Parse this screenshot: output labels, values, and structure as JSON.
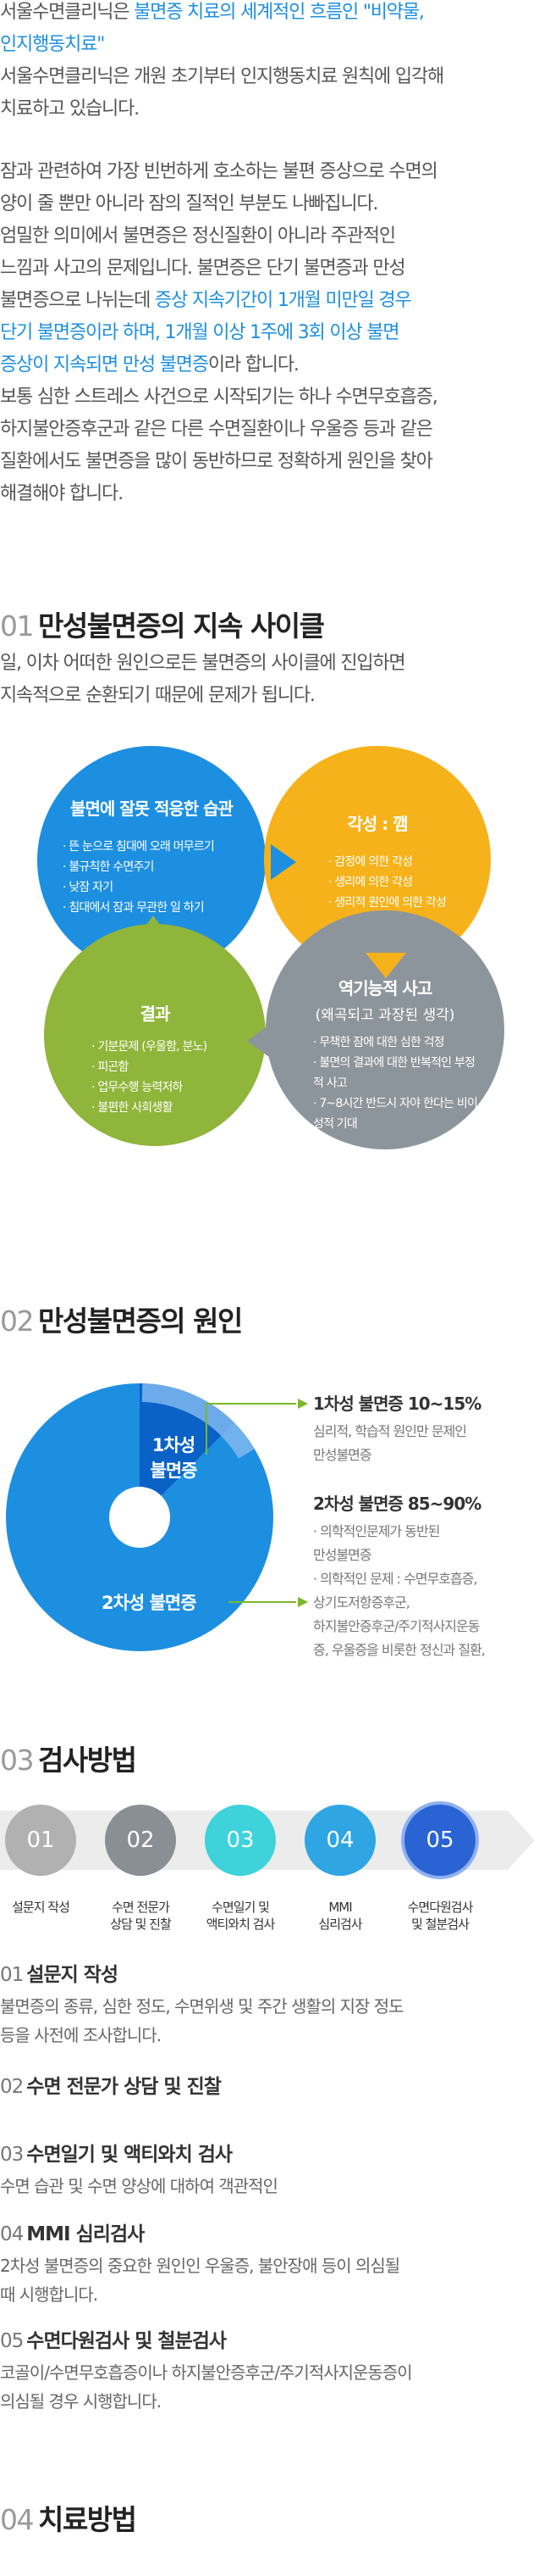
{
  "intro": {
    "line1_pre": "서울수면클리닉은 ",
    "line1_blue": "불면증 치료의 세계적인 흐름인 \"비약물,",
    "line2_blue": "인지행동치료\"",
    "line3": "서울수면클리닉은 개원 초기부터 인지행동치료 원칙에 입각해",
    "line4": "치료하고 있습니다."
  },
  "body": {
    "p1": "잠과 관련하여 가장 빈번하게 호소하는 불편 증상으로 수면의",
    "p2": "양이 줄 뿐만 아니라 잠의 질적인 부분도 나빠집니다.",
    "p3": "엄밀한 의미에서 불면증은 정신질환이 아니라 주관적인",
    "p4": "느낌과 사고의 문제입니다. 불면증은 단기 불면증과 만성",
    "p5_pre": "불면증으로 나뉘는데 ",
    "p5_blue": "증상 지속기간이 1개월 미만일 경우",
    "p6_blue": "단기 불면증이라 하며, 1개월 이상 1주에 3회 이상 불면",
    "p7_blue": "증상이 지속되면 만성 불면증",
    "p7_post": "이라 합니다.",
    "p8": "보통 심한 스트레스 사건으로 시작되기는 하나 수면무호흡증,",
    "p9": "하지불안증후군과 같은 다른 수면질환이나 우울증 등과 같은",
    "p10": "질환에서도 불면증을 많이 동반하므로 정확하게 원인을 찾아",
    "p11": "해결해야 합니다."
  },
  "section1": {
    "num": "01",
    "title": "만성불면증의 지속 사이클",
    "desc1": "일, 이차 어떠한 원인으로든 불면증의 사이클에 진입하면",
    "desc2": "지속적으로 순환되기 때문에 문제가 됩니다.",
    "cycle": {
      "habit": {
        "title": "불면에 잘못 적응한 습관",
        "items": [
          "뜬 눈으로 침대에 오래 머무르기",
          "불규칙한 수면주기",
          "낮잠 자기",
          "침대에서 잠과 무관한 일 하기"
        ]
      },
      "arousal": {
        "title": "각성 : 깸",
        "items": [
          "감정에 의한 각성",
          "생리에 의한 각성",
          "생리적 원인에 의한 각성"
        ]
      },
      "result": {
        "title": "결과",
        "items": [
          "기분문제 (우울함, 분노)",
          "피곤함",
          "업무수행 능력저하",
          "불편한 사회생활"
        ]
      },
      "thought": {
        "title": "역기능적 사고",
        "subtitle": "(왜곡되고 과장된 생각)",
        "items": [
          "무책한 잠에 대한 심한 걱정",
          "불면의 결과에 대한 반복적인 부정적 사고",
          "7~8시간 반드시 자야 한다는 비이성적 기대"
        ]
      },
      "colors": {
        "habit": "#1d8fe0",
        "arousal": "#f6b21a",
        "result": "#8fb53a",
        "thought": "#8d959c"
      }
    }
  },
  "section2": {
    "num": "02",
    "title": "만성불면증의 원인",
    "inner_label": "1차성\n불면증",
    "outer_label": "2차성 불면증",
    "primary": {
      "title": "1차성 불면증 10~15%",
      "desc": [
        "심리적, 학습적 원인만 문제인",
        "만성불면증"
      ]
    },
    "secondary": {
      "title": "2차성 불면증 85~90%",
      "desc": [
        "· 의학적인문제가 동반된",
        "만성불면증",
        "· 의학적인 문제 : 수면무호흡증,",
        "상기도저항증후군,",
        "하지불안증후군/주기적사지운동",
        "증, 우울증을 비롯한 정신과 질환,"
      ]
    },
    "chart_data": {
      "type": "pie",
      "categories": [
        "1차성 불면증",
        "2차성 불면증"
      ],
      "values": [
        12.5,
        87.5
      ],
      "colors": [
        "#0a62c7",
        "#1d8fe0"
      ]
    }
  },
  "section3": {
    "num": "03",
    "title": "검사방법",
    "steps": [
      {
        "num": "01",
        "label": "설문지 작성",
        "color": "#b1b1b1"
      },
      {
        "num": "02",
        "label": "수면 전문가\n상담 및 진찰",
        "color": "#8a8f95"
      },
      {
        "num": "03",
        "label": "수면일기 및\n액티와치 검사",
        "color": "#3ed2da"
      },
      {
        "num": "04",
        "label": "MMI\n심리검사",
        "color": "#2fa6e3"
      },
      {
        "num": "05",
        "label": "수면다원검사\n및 철분검사",
        "color": "#2a63d4"
      }
    ],
    "items": [
      {
        "n": "01",
        "title": "설문지 작성",
        "desc": [
          "불면증의 종류, 심한 정도, 수면위생 및 주간 생활의 지장 정도",
          "등을 사전에 조사합니다."
        ]
      },
      {
        "n": "02",
        "title": "수면 전문가 상담 및 진찰",
        "desc": []
      },
      {
        "n": "03",
        "title": "수면일기 및 액티와치 검사",
        "desc": [
          "수면 습관 및 수면 양상에 대하여 객관적인"
        ]
      },
      {
        "n": "04",
        "title": "MMI 심리검사",
        "desc": [
          "2차성 불면증의 중요한 원인인 우울증, 불안장애 등이 의심될",
          "때 시행합니다."
        ]
      },
      {
        "n": "05",
        "title": "수면다원검사 및 철분검사",
        "desc": [
          "코골이/수면무호흡증이나 하지불안증후군/주기적사지운동증이",
          "의심될 경우 시행합니다."
        ]
      }
    ]
  },
  "section4": {
    "num": "04",
    "title": "치료방법"
  }
}
